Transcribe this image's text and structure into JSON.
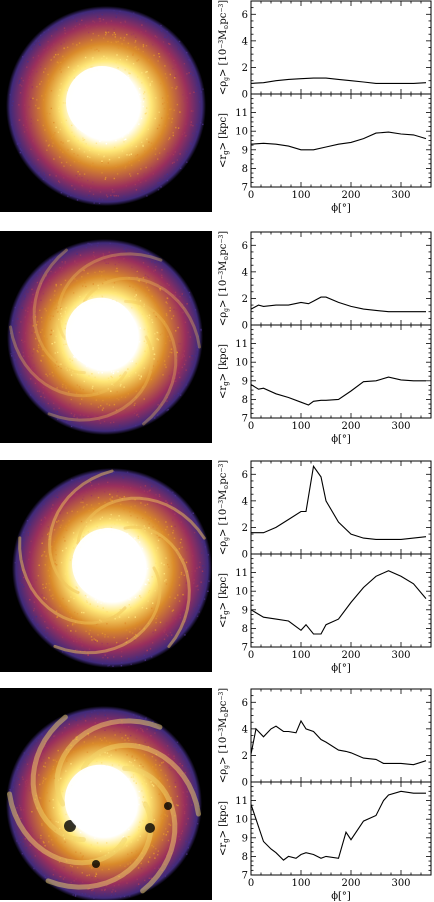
{
  "labels": {
    "rho_ylabel": "<ρ",
    "rho_sub": "g",
    "rho_units": "> [10",
    "rho_exp1": "−3",
    "rho_M": "M",
    "rho_sun": "⊙",
    "rho_pc": "pc",
    "rho_exp2": "−3",
    "rho_close": "]",
    "r_ylabel": "<r",
    "r_sub": "g",
    "r_units": "> [kpc]",
    "xlabel": "ϕ[°]"
  },
  "colors": {
    "background": "#000000",
    "core": "#ffffff",
    "inner": "#ffe97a",
    "mid": "#d98a2a",
    "outer": "#9a2f5c",
    "edge": "#3f2a7a",
    "line": "#000000"
  },
  "chart_data": [
    {
      "type": "line",
      "panel": 1,
      "x": [
        0,
        25,
        50,
        75,
        100,
        125,
        150,
        175,
        200,
        225,
        250,
        275,
        300,
        325,
        350
      ],
      "rho": {
        "ylim": [
          0,
          7
        ],
        "yticks": [
          0,
          2,
          4,
          6
        ],
        "values": [
          0.8,
          0.85,
          1.0,
          1.1,
          1.15,
          1.2,
          1.2,
          1.1,
          1.0,
          0.9,
          0.8,
          0.8,
          0.8,
          0.8,
          0.85
        ]
      },
      "r": {
        "ylim": [
          7,
          12
        ],
        "yticks": [
          7,
          8,
          9,
          10,
          11
        ],
        "values": [
          9.3,
          9.35,
          9.3,
          9.2,
          9.0,
          9.0,
          9.15,
          9.3,
          9.4,
          9.6,
          9.9,
          9.95,
          9.85,
          9.8,
          9.6
        ]
      },
      "xlim": [
        0,
        360
      ],
      "xticks": [
        0,
        100,
        200,
        300
      ]
    },
    {
      "type": "line",
      "panel": 2,
      "x": [
        0,
        15,
        25,
        50,
        75,
        100,
        115,
        125,
        140,
        150,
        175,
        200,
        225,
        250,
        275,
        300,
        325,
        350
      ],
      "rho": {
        "ylim": [
          0,
          7
        ],
        "yticks": [
          0,
          2,
          4,
          6
        ],
        "values": [
          1.2,
          1.5,
          1.4,
          1.5,
          1.5,
          1.7,
          1.6,
          1.8,
          2.1,
          2.1,
          1.7,
          1.4,
          1.2,
          1.1,
          1.0,
          1.0,
          1.0,
          1.0
        ]
      },
      "r": {
        "ylim": [
          7,
          12
        ],
        "yticks": [
          7,
          8,
          9,
          10,
          11
        ],
        "values": [
          8.8,
          8.55,
          8.6,
          8.3,
          8.1,
          7.85,
          7.7,
          7.9,
          7.95,
          7.95,
          8.0,
          8.45,
          8.95,
          9.0,
          9.2,
          9.05,
          9.0,
          9.0
        ]
      },
      "xlim": [
        0,
        360
      ],
      "xticks": [
        0,
        100,
        200,
        300
      ]
    },
    {
      "type": "line",
      "panel": 3,
      "x": [
        0,
        25,
        50,
        75,
        100,
        110,
        125,
        140,
        150,
        175,
        200,
        225,
        250,
        275,
        300,
        325,
        350
      ],
      "rho": {
        "ylim": [
          0,
          7
        ],
        "yticks": [
          0,
          2,
          4,
          6
        ],
        "values": [
          1.6,
          1.6,
          2.0,
          2.6,
          3.2,
          3.2,
          6.6,
          5.8,
          4.0,
          2.4,
          1.5,
          1.2,
          1.1,
          1.1,
          1.1,
          1.2,
          1.3
        ]
      },
      "r": {
        "ylim": [
          7,
          12
        ],
        "yticks": [
          7,
          8,
          9,
          10,
          11
        ],
        "values": [
          9.0,
          8.6,
          8.5,
          8.4,
          7.9,
          8.2,
          7.7,
          7.7,
          8.2,
          8.5,
          9.4,
          10.2,
          10.8,
          11.1,
          10.8,
          10.4,
          9.6
        ]
      },
      "xlim": [
        0,
        360
      ],
      "xticks": [
        0,
        100,
        200,
        300
      ]
    },
    {
      "type": "line",
      "panel": 4,
      "x": [
        0,
        10,
        25,
        40,
        50,
        65,
        75,
        90,
        100,
        110,
        125,
        140,
        150,
        175,
        190,
        200,
        225,
        250,
        265,
        275,
        300,
        325,
        350
      ],
      "rho": {
        "ylim": [
          0,
          7
        ],
        "yticks": [
          0,
          2,
          4,
          6
        ],
        "values": [
          2.1,
          4.0,
          3.4,
          4.0,
          4.2,
          3.8,
          3.8,
          3.7,
          4.6,
          4.0,
          3.8,
          3.2,
          3.0,
          2.4,
          2.3,
          2.2,
          1.8,
          1.7,
          1.4,
          1.4,
          1.4,
          1.3,
          1.6
        ]
      },
      "r": {
        "ylim": [
          7,
          12
        ],
        "yticks": [
          7,
          8,
          9,
          10,
          11
        ],
        "values": [
          10.8,
          10.0,
          8.8,
          8.4,
          8.2,
          7.8,
          8.0,
          7.9,
          8.1,
          8.2,
          8.1,
          7.9,
          8.0,
          7.9,
          9.3,
          8.9,
          9.9,
          10.2,
          11.0,
          11.3,
          11.5,
          11.4,
          11.4
        ]
      },
      "xlim": [
        0,
        360
      ],
      "xticks": [
        0,
        100,
        200,
        300
      ]
    }
  ]
}
